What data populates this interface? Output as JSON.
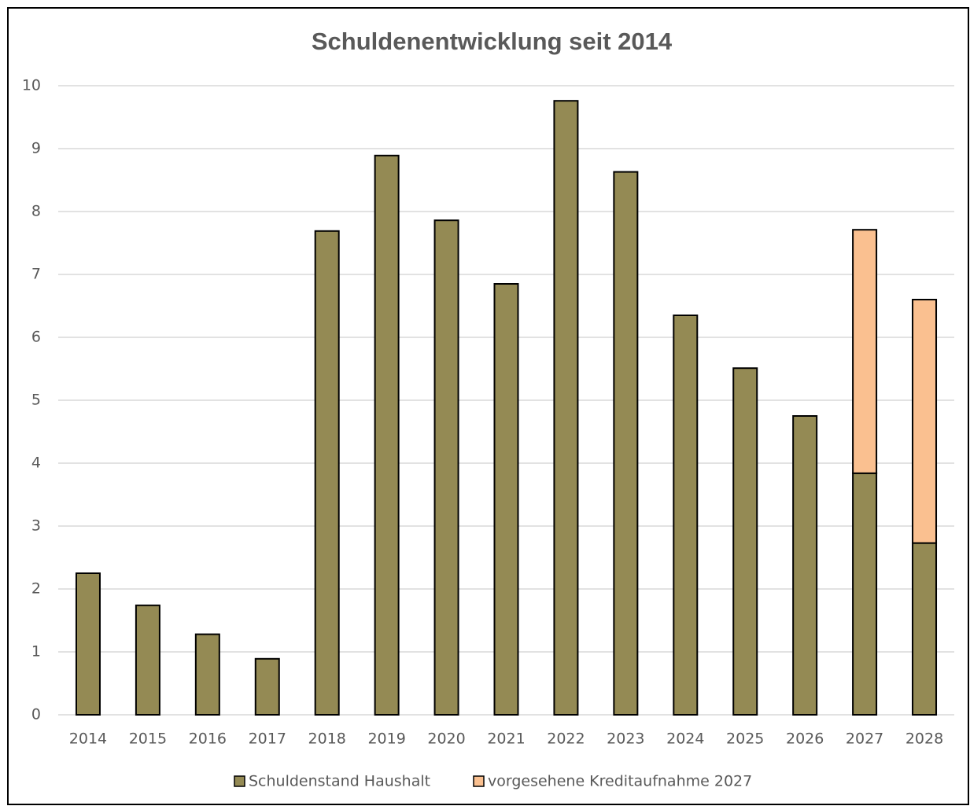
{
  "chart_data": {
    "type": "stacked_bar",
    "title": "Schuldenentwicklung seit 2014",
    "categories": [
      "2014",
      "2015",
      "2016",
      "2017",
      "2018",
      "2019",
      "2020",
      "2021",
      "2022",
      "2023",
      "2024",
      "2025",
      "2026",
      "2027",
      "2028"
    ],
    "series": [
      {
        "name": "Schuldenstand Haushalt",
        "color": "#948a54",
        "values": [
          2.25,
          1.74,
          1.28,
          0.89,
          7.69,
          8.89,
          7.86,
          6.85,
          9.76,
          8.63,
          6.35,
          5.51,
          4.75,
          3.84,
          2.73
        ]
      },
      {
        "name": "vorgesehene Kreditaufnahme 2027",
        "color": "#fac090",
        "values": [
          null,
          null,
          null,
          null,
          null,
          null,
          null,
          null,
          null,
          null,
          null,
          null,
          null,
          3.87,
          3.87
        ]
      }
    ],
    "ylim": [
      0,
      10
    ],
    "yticks": [
      0,
      1,
      2,
      3,
      4,
      5,
      6,
      7,
      8,
      9,
      10
    ],
    "grid": true,
    "legend": "bottom"
  }
}
